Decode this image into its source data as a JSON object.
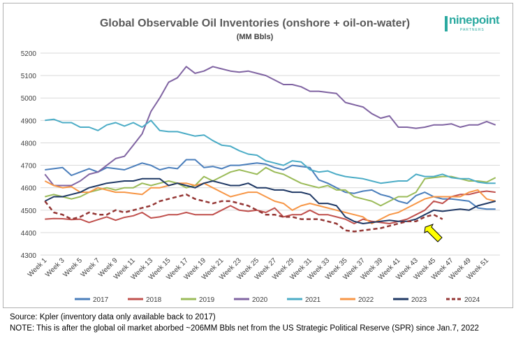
{
  "chart_data": {
    "type": "line",
    "title": "Global Observable Oil Inventories (onshore + oil-on-water)",
    "subtitle": "(MM Bbls)",
    "ylim": [
      4300,
      5200
    ],
    "yticks": [
      4300,
      4400,
      4500,
      4600,
      4700,
      4800,
      4900,
      5000,
      5100,
      5200
    ],
    "xticklabels": [
      "Week 1",
      "Week 3",
      "Week 5",
      "Week 7",
      "Week 9",
      "Week 11",
      "Week 13",
      "Week 15",
      "Week 17",
      "Week 19",
      "Week 21",
      "Week 23",
      "Week 25",
      "Week 27",
      "Week 29",
      "Week 31",
      "Week 33",
      "Week 35",
      "Week 37",
      "Week 39",
      "Week 41",
      "Week 43",
      "Week 45",
      "Week 47",
      "Week 49",
      "Week 51"
    ],
    "legend_position": "bottom",
    "grid": true,
    "series": [
      {
        "name": "2017",
        "color": "#4a7ebb",
        "dashed": false,
        "values": [
          4680,
          4685,
          4690,
          4655,
          4670,
          4685,
          4670,
          4690,
          4685,
          4680,
          4695,
          4710,
          4700,
          4680,
          4690,
          4685,
          4725,
          4725,
          4690,
          4695,
          4685,
          4700,
          4700,
          4705,
          4710,
          4705,
          4690,
          4680,
          4700,
          4695,
          4690,
          4635,
          4620,
          4600,
          4580,
          4575,
          4585,
          4590,
          4570,
          4560,
          4540,
          4530,
          4565,
          4580,
          4560,
          4550,
          4550,
          4545,
          4540,
          4510,
          4505,
          4505
        ]
      },
      {
        "name": "2018",
        "color": "#c0504d",
        "dashed": false,
        "values": [
          4460,
          4463,
          4462,
          4458,
          4460,
          4445,
          4458,
          4470,
          4455,
          4468,
          4475,
          4490,
          4465,
          4470,
          4480,
          4480,
          4490,
          4480,
          4480,
          4480,
          4500,
          4520,
          4500,
          4495,
          4500,
          4490,
          4510,
          4470,
          4480,
          4480,
          4500,
          4480,
          4480,
          4470,
          4460,
          4440,
          4460,
          4450,
          4445,
          4440,
          4450,
          4460,
          4480,
          4500,
          4540,
          4530,
          4560,
          4570,
          4570,
          4580,
          4585,
          4580
        ]
      },
      {
        "name": "2019",
        "color": "#9bbb59",
        "dashed": false,
        "values": [
          4560,
          4570,
          4560,
          4550,
          4560,
          4580,
          4590,
          4600,
          4590,
          4600,
          4600,
          4620,
          4610,
          4620,
          4630,
          4620,
          4600,
          4610,
          4650,
          4630,
          4650,
          4670,
          4680,
          4670,
          4660,
          4690,
          4670,
          4660,
          4640,
          4620,
          4610,
          4600,
          4610,
          4590,
          4590,
          4560,
          4550,
          4540,
          4520,
          4540,
          4560,
          4560,
          4580,
          4640,
          4645,
          4650,
          4650,
          4640,
          4630,
          4630,
          4625,
          4645
        ]
      },
      {
        "name": "2020",
        "color": "#8064a2",
        "dashed": false,
        "values": [
          4660,
          4610,
          4610,
          4610,
          4630,
          4660,
          4670,
          4700,
          4730,
          4740,
          4790,
          4840,
          4940,
          5000,
          5070,
          5090,
          5140,
          5110,
          5120,
          5140,
          5130,
          5120,
          5115,
          5120,
          5110,
          5100,
          5080,
          5060,
          5060,
          5050,
          5030,
          5030,
          5025,
          5020,
          4980,
          4970,
          4960,
          4930,
          4910,
          4920,
          4870,
          4870,
          4865,
          4870,
          4880,
          4880,
          4885,
          4870,
          4880,
          4880,
          4895,
          4880
        ]
      },
      {
        "name": "2021",
        "color": "#4bacc6",
        "dashed": false,
        "values": [
          4900,
          4905,
          4890,
          4890,
          4870,
          4870,
          4855,
          4880,
          4890,
          4875,
          4890,
          4870,
          4900,
          4855,
          4850,
          4850,
          4840,
          4830,
          4835,
          4810,
          4790,
          4785,
          4765,
          4750,
          4745,
          4720,
          4710,
          4700,
          4720,
          4715,
          4680,
          4670,
          4675,
          4660,
          4650,
          4645,
          4640,
          4630,
          4620,
          4625,
          4630,
          4630,
          4660,
          4650,
          4650,
          4660,
          4645,
          4640,
          4640,
          4625,
          4620,
          4620
        ]
      },
      {
        "name": "2022",
        "color": "#f79646",
        "dashed": false,
        "values": [
          4630,
          4610,
          4600,
          4605,
          4580,
          4580,
          4600,
          4590,
          4580,
          4580,
          4575,
          4570,
          4600,
          4600,
          4610,
          4620,
          4620,
          4610,
          4620,
          4600,
          4580,
          4560,
          4570,
          4580,
          4580,
          4560,
          4540,
          4530,
          4500,
          4520,
          4530,
          4520,
          4510,
          4500,
          4490,
          4480,
          4470,
          4440,
          4460,
          4480,
          4490,
          4510,
          4530,
          4550,
          4560,
          4560,
          4560,
          4560,
          4580,
          4590,
          4550,
          4540
        ]
      },
      {
        "name": "2023",
        "color": "#1f3864",
        "dashed": false,
        "values": [
          4540,
          4560,
          4560,
          4570,
          4580,
          4600,
          4610,
          4620,
          4625,
          4630,
          4630,
          4640,
          4640,
          4640,
          4610,
          4620,
          4610,
          4600,
          4620,
          4630,
          4620,
          4610,
          4610,
          4620,
          4600,
          4600,
          4590,
          4590,
          4580,
          4580,
          4570,
          4530,
          4530,
          4520,
          4470,
          4450,
          4440,
          4445,
          4450,
          4455,
          4450,
          4450,
          4460,
          4480,
          4500,
          4495,
          4500,
          4505,
          4500,
          4520,
          4530,
          4540
        ]
      },
      {
        "name": "2024",
        "color": "#943634",
        "dashed": true,
        "values": [
          4540,
          4490,
          4480,
          4460,
          4470,
          4490,
          4480,
          4480,
          4500,
          4490,
          4500,
          4510,
          4520,
          4540,
          4550,
          4560,
          4570,
          4550,
          4540,
          4530,
          4540,
          4540,
          4530,
          4520,
          4500,
          4480,
          4480,
          4470,
          4470,
          4460,
          4460,
          4460,
          4450,
          4440,
          4410,
          4405,
          4410,
          4415,
          4420,
          4430,
          4440,
          4450,
          4450,
          4470,
          4480,
          4460
        ]
      }
    ]
  },
  "source_text": "Source: Kpler (inventory data only available back to 2017)",
  "note_text": "NOTE: This is after the global oil market aborbed ~206MM Bbls net from the US Strategic Political Reserve (SPR) since Jan.7, 2022",
  "logo": {
    "brand": "ninepoint",
    "sub": "PARTNERS"
  },
  "arrow_icon": "arrow-pointing-up-left",
  "arrow_color": "#ffff00"
}
